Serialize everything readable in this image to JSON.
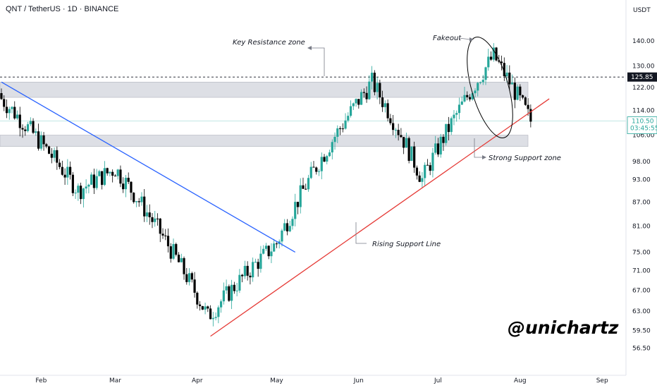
{
  "header": {
    "symbol_title": "QNT / TetherUS · 1D · BINANCE"
  },
  "price_axis": {
    "currency": "USDT",
    "ticks": [
      "140.00",
      "130.00",
      "122.00",
      "114.00",
      "106.00",
      "98.00",
      "93.00",
      "87.00",
      "81.00",
      "75.00",
      "71.00",
      "67.00",
      "63.00",
      "59.50",
      "56.50"
    ],
    "last_price": "110.50",
    "countdown": "03:45:55",
    "reference_price": "125.85"
  },
  "time_axis": {
    "ticks": [
      "Feb",
      "Mar",
      "Apr",
      "May",
      "Jun",
      "Jul",
      "Aug",
      "Sep"
    ]
  },
  "annotations": {
    "key_resistance": "Key Resistance zone",
    "strong_support": "Strong Support zone",
    "rising_support": "Rising Support Line",
    "fakeout": "Fakeout"
  },
  "watermark": "@unichartz",
  "colors": {
    "up": "#26a69a",
    "down": "#000000",
    "trendline_down": "#2962ff",
    "trendline_up": "#e53935",
    "zone": "#d1d4dc"
  },
  "chart_data": {
    "type": "candlestick",
    "y_scale": "log",
    "ylim": [
      54,
      150
    ],
    "x_unit": "date",
    "date_range": [
      "2023-01-17",
      "2023-09-10"
    ],
    "ohlc_sample": [
      {
        "date": "2023-01-17",
        "open": 120,
        "high": 124,
        "low": 117,
        "close": 118
      },
      {
        "date": "2023-02-15",
        "open": 98,
        "high": 104,
        "low": 85,
        "close": 90
      },
      {
        "date": "2023-03-01",
        "open": 101,
        "high": 115,
        "low": 95,
        "close": 96
      },
      {
        "date": "2023-04-05",
        "open": 60,
        "high": 63,
        "low": 58.5,
        "close": 62
      },
      {
        "date": "2023-05-01",
        "open": 75,
        "high": 78,
        "low": 74,
        "close": 77
      },
      {
        "date": "2023-06-06",
        "open": 120,
        "high": 126,
        "low": 117,
        "close": 124
      },
      {
        "date": "2023-06-25",
        "open": 91,
        "high": 95,
        "low": 86,
        "close": 93
      },
      {
        "date": "2023-07-22",
        "open": 120,
        "high": 137,
        "low": 119,
        "close": 134
      },
      {
        "date": "2023-08-05",
        "open": 106,
        "high": 111,
        "low": 105,
        "close": 110.5
      }
    ],
    "zones": [
      {
        "name": "Key Resistance zone",
        "low": 118.5,
        "high": 124
      },
      {
        "name": "Strong Support zone",
        "low": 102.5,
        "high": 106
      }
    ],
    "trendlines": [
      {
        "color": "blue",
        "from": {
          "date": "2023-01-17",
          "price": 124
        },
        "to": {
          "date": "2023-05-08",
          "price": 75
        }
      },
      {
        "color": "red",
        "from": {
          "date": "2023-04-06",
          "price": 58.5
        },
        "to": {
          "date": "2023-08-12",
          "price": 118
        }
      }
    ],
    "horizontal_levels": [
      {
        "price": 125.85,
        "style": "dashed"
      },
      {
        "price": 110.5,
        "style": "solid-light"
      }
    ]
  }
}
